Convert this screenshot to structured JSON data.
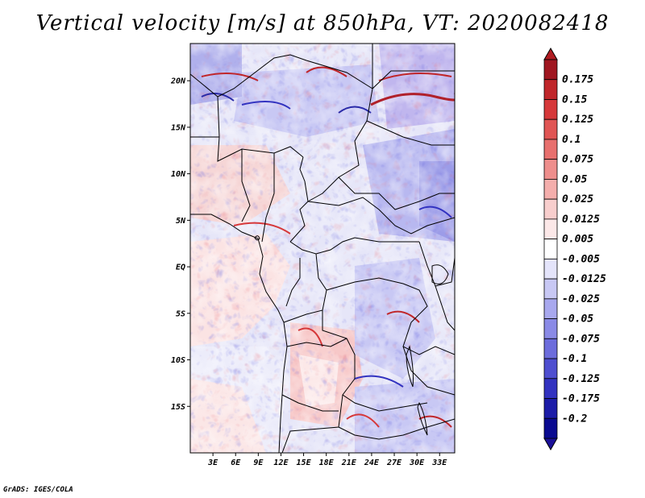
{
  "title": "Vertical velocity [m/s] at 850hPa, VT: 2020082418",
  "credit": "GrADS: IGES/COLA",
  "map": {
    "lon_range": [
      0,
      35
    ],
    "lat_range": [
      -20,
      24
    ],
    "lat_ticks": [
      {
        "lat": 20,
        "label": "20N"
      },
      {
        "lat": 15,
        "label": "15N"
      },
      {
        "lat": 10,
        "label": "10N"
      },
      {
        "lat": 5,
        "label": "5N"
      },
      {
        "lat": 0,
        "label": "EQ"
      },
      {
        "lat": -5,
        "label": "5S"
      },
      {
        "lat": -10,
        "label": "10S"
      },
      {
        "lat": -15,
        "label": "15S"
      }
    ],
    "lon_ticks": [
      {
        "lon": 3,
        "label": "3E"
      },
      {
        "lon": 6,
        "label": "6E"
      },
      {
        "lon": 9,
        "label": "9E"
      },
      {
        "lon": 12,
        "label": "12E"
      },
      {
        "lon": 15,
        "label": "15E"
      },
      {
        "lon": 18,
        "label": "18E"
      },
      {
        "lon": 21,
        "label": "21E"
      },
      {
        "lon": 24,
        "label": "24E"
      },
      {
        "lon": 27,
        "label": "27E"
      },
      {
        "lon": 30,
        "label": "30E"
      },
      {
        "lon": 33,
        "label": "33E"
      }
    ]
  },
  "colorbar": {
    "labels": [
      "0.175",
      "0.15",
      "0.125",
      "0.1",
      "0.075",
      "0.05",
      "0.025",
      "0.0125",
      "0.005",
      "-0.005",
      "-0.0125",
      "-0.025",
      "-0.05",
      "-0.075",
      "-0.1",
      "-0.125",
      "-0.175",
      "-0.2"
    ],
    "colors": [
      "#a01620",
      "#c0262a",
      "#d6383a",
      "#e05554",
      "#e8706e",
      "#ee8e8c",
      "#f4aeac",
      "#f8cecd",
      "#fce8e8",
      "#ffffff",
      "#e4e4fa",
      "#c8c8f4",
      "#a8a8ee",
      "#8a8ae6",
      "#6c6cdc",
      "#4e4ed0",
      "#3232c0",
      "#1c1ca8",
      "#0a0a90"
    ],
    "top_color": "#b01c22",
    "bottom_color": "#1a1098"
  }
}
